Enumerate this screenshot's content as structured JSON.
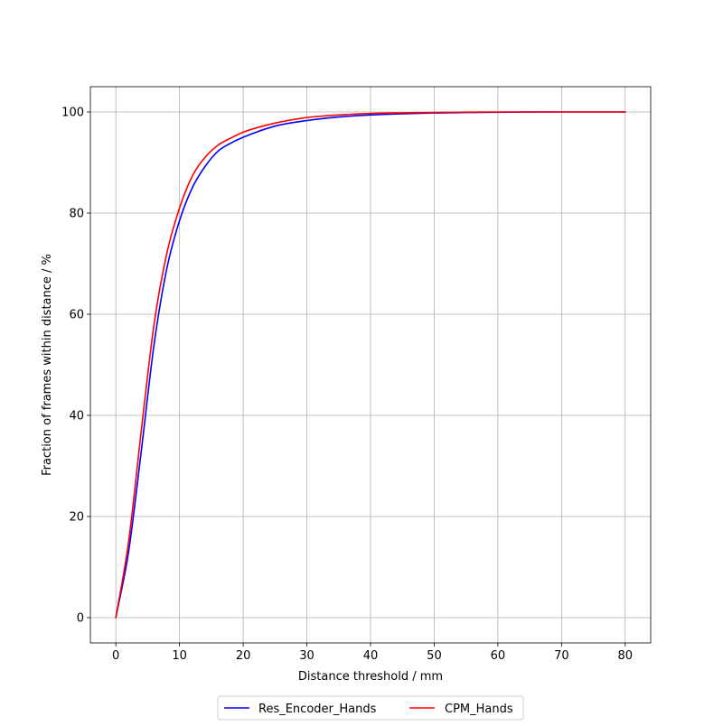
{
  "chart_data": {
    "type": "line",
    "title": "",
    "xlabel": "Distance threshold / mm",
    "ylabel": "Fraction of frames within distance / %",
    "xlim": [
      -4,
      84
    ],
    "ylim": [
      -5,
      105
    ],
    "xticks": [
      0,
      10,
      20,
      30,
      40,
      50,
      60,
      70,
      80
    ],
    "yticks": [
      0,
      20,
      40,
      60,
      80,
      100
    ],
    "grid": true,
    "legend_position": "bottom-center-outside",
    "series": [
      {
        "name": "Res_Encoder_Hands",
        "color": "#0000ff",
        "x": [
          0,
          2,
          4,
          6,
          8,
          10,
          12,
          14,
          16,
          18,
          20,
          25,
          30,
          35,
          40,
          50,
          60,
          70,
          80
        ],
        "y": [
          0,
          13,
          33,
          54,
          69,
          78.5,
          85,
          89.2,
          92.2,
          93.8,
          95,
          97.2,
          98.3,
          99.0,
          99.4,
          99.8,
          99.95,
          100,
          100
        ]
      },
      {
        "name": "CPM_Hands",
        "color": "#ff0000",
        "x": [
          0,
          2,
          4,
          6,
          8,
          10,
          12,
          14,
          16,
          18,
          20,
          25,
          30,
          35,
          40,
          50,
          60,
          70,
          80
        ],
        "y": [
          0,
          15,
          37,
          58,
          72,
          81,
          87.3,
          91,
          93.4,
          94.8,
          96,
          97.8,
          98.9,
          99.4,
          99.7,
          99.9,
          100,
          100,
          100
        ]
      }
    ]
  }
}
